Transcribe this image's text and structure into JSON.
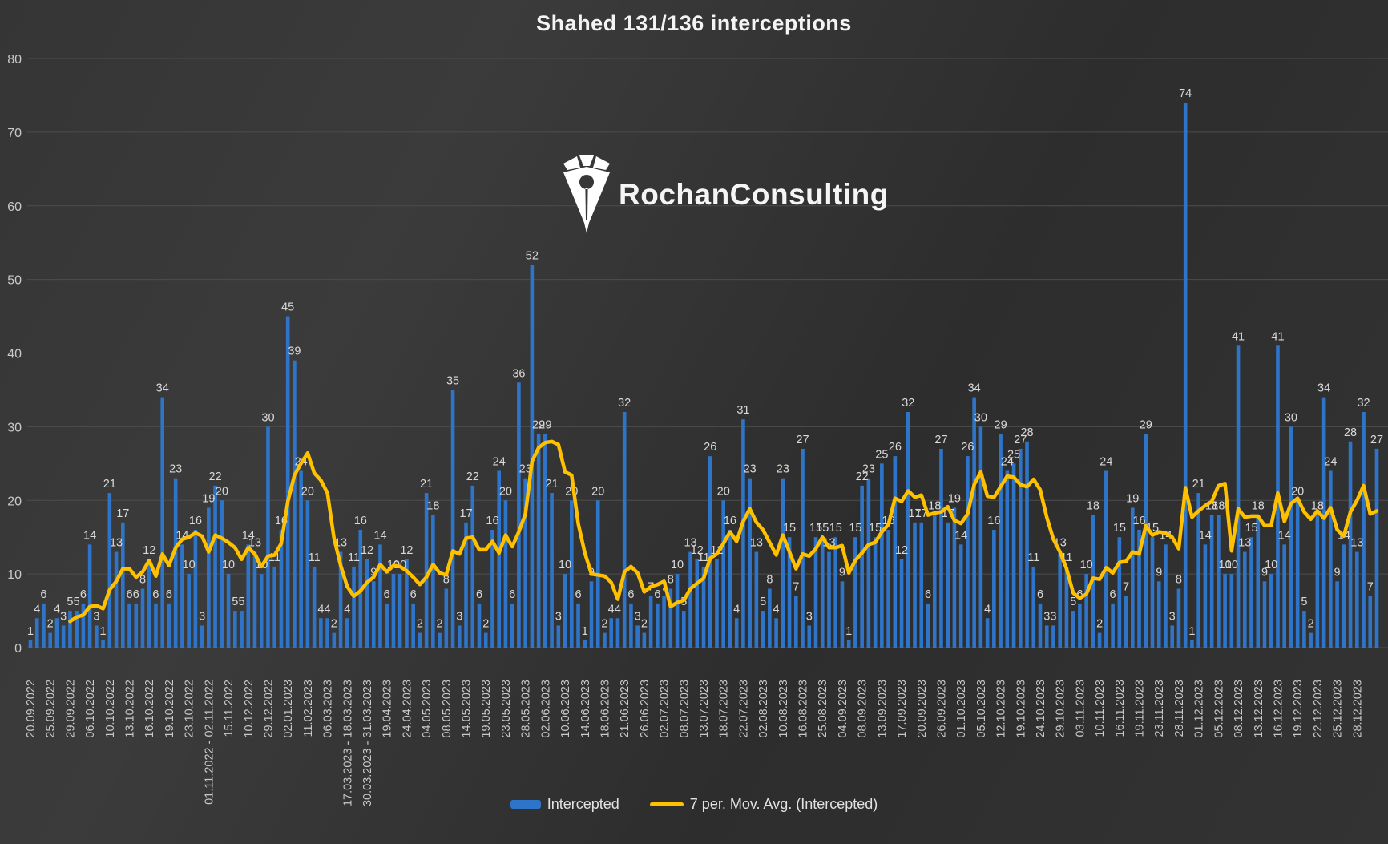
{
  "title": "Shahed 131/136 interceptions",
  "logo": {
    "text": "RochanConsulting"
  },
  "legend": {
    "intercepted_label": "Intercepted",
    "mov_avg_label": "7 per. Mov. Avg. (Intercepted)"
  },
  "chart_data": {
    "type": "bar",
    "title": "Shahed 131/136 interceptions",
    "xlabel": "",
    "ylabel": "",
    "ylim": [
      0,
      80
    ],
    "y_ticks": [
      0,
      10,
      20,
      30,
      40,
      50,
      60,
      70,
      80
    ],
    "grid": true,
    "legend_position": "bottom",
    "label_every": 3,
    "series": [
      {
        "name": "Intercepted",
        "type": "bar"
      },
      {
        "name": "7 per. Mov. Avg. (Intercepted)",
        "type": "moving_average",
        "period": 7
      }
    ],
    "x_labels": [
      "20.09.2022",
      "25.09.2022",
      "29.09.2022",
      "06.10.2022",
      "10.10.2022",
      "13.10.2022",
      "16.10.2022",
      "19.10.2022",
      "23.10.2022",
      "01.11.2022 - 02.11.2022",
      "15.11.2022",
      "10.12.2022",
      "29.12.2022",
      "02.01.2023",
      "11.02.2023",
      "06.03.2023",
      "17.03.2023 - 18.03.2023",
      "30.03.2023 - 31.03.2023",
      "19.04.2023",
      "24.04.2023",
      "04.05.2023",
      "08.05.2023",
      "14.05.2023",
      "19.05.2023",
      "23.05.2023",
      "28.05.2023",
      "02.06.2023",
      "10.06.2023",
      "14.06.2023",
      "18.06.2023",
      "21.06.2023",
      "26.06.2023",
      "02.07.2023",
      "08.07.2023",
      "13.07.2023",
      "18.07.2023",
      "22.07.2023",
      "02.08.2023",
      "10.08.2023",
      "16.08.2023",
      "25.08.2023",
      "04.09.2023",
      "08.09.2023",
      "13.09.2023",
      "17.09.2023",
      "20.09.2023",
      "26.09.2023",
      "01.10.2023",
      "05.10.2023",
      "12.10.2023",
      "19.10.2023",
      "24.10.2023",
      "29.10.2023",
      "03.11.2023",
      "10.11.2023",
      "16.11.2023",
      "19.11.2023",
      "23.11.2023",
      "28.11.2023",
      "01.12.2023",
      "05.12.2023",
      "08.12.2023",
      "13.12.2023",
      "16.12.2023",
      "19.12.2023",
      "22.12.2023",
      "25.12.2023",
      "28.12.2023"
    ],
    "values": [
      1,
      4,
      6,
      2,
      4,
      3,
      5,
      5,
      6,
      14,
      3,
      1,
      21,
      13,
      17,
      6,
      6,
      8,
      12,
      6,
      34,
      6,
      23,
      14,
      10,
      16,
      3,
      19,
      22,
      20,
      10,
      5,
      5,
      14,
      13,
      10,
      30,
      11,
      16,
      45,
      39,
      24,
      20,
      11,
      4,
      4,
      2,
      13,
      4,
      11,
      16,
      12,
      9,
      14,
      6,
      10,
      10,
      12,
      6,
      2,
      21,
      18,
      2,
      8,
      35,
      3,
      17,
      22,
      6,
      2,
      16,
      24,
      20,
      6,
      36,
      23,
      52,
      29,
      29,
      21,
      3,
      10,
      20,
      6,
      1,
      9,
      20,
      2,
      4,
      4,
      32,
      6,
      3,
      2,
      7,
      6,
      7,
      8,
      10,
      5,
      13,
      12,
      11,
      26,
      12,
      20,
      16,
      4,
      31,
      23,
      13,
      5,
      8,
      4,
      23,
      15,
      7,
      27,
      3,
      15,
      15,
      13,
      15,
      9,
      1,
      15,
      22,
      23,
      15,
      25,
      16,
      26,
      12,
      32,
      17,
      17,
      6,
      18,
      27,
      17,
      19,
      14,
      26,
      34,
      30,
      4,
      16,
      29,
      24,
      25,
      27,
      28,
      11,
      6,
      3,
      3,
      13,
      11,
      5,
      6,
      10,
      18,
      2,
      24,
      6,
      15,
      7,
      19,
      16,
      29,
      15,
      9,
      14,
      3,
      8,
      74,
      1,
      21,
      14,
      18,
      18,
      10,
      10,
      41,
      13,
      15,
      18,
      9,
      10,
      41,
      14,
      30,
      20,
      5,
      2,
      18,
      34,
      24,
      9,
      14,
      28,
      13,
      32,
      7,
      27
    ],
    "colors": {
      "bar": "#2e75c9",
      "line": "#ffc000",
      "value_label": "#d9d9d9",
      "axis_text": "#c9c9c9",
      "grid": "#4d4d4d",
      "title_text": "#f4f4f4"
    }
  }
}
